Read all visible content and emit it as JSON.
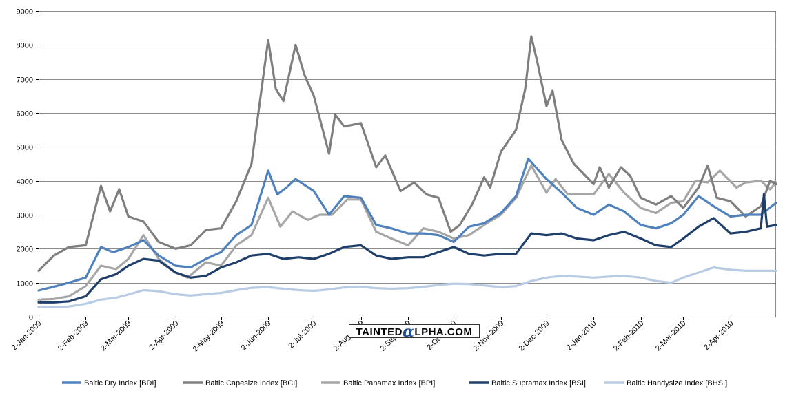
{
  "chart_data": {
    "type": "line",
    "title": "",
    "xlabel": "",
    "ylabel": "",
    "ylim": [
      0,
      9000
    ],
    "yticks": [
      0,
      1000,
      2000,
      3000,
      4000,
      5000,
      6000,
      7000,
      8000,
      9000
    ],
    "xlim": [
      "2-Jan-2009",
      "2-May-2010"
    ],
    "xtick_labels": [
      "2-Jan-2009",
      "2-Feb-2009",
      "2-Mar-2009",
      "2-Apr-2009",
      "2-May-2009",
      "2-Jun-2009",
      "2-Jul-2009",
      "2-Aug-2009",
      "2-Sep-2009",
      "2-Oct-2009",
      "2-Nov-2009",
      "2-Dec-2009",
      "2-Jan-2010",
      "2-Feb-2010",
      "2-Mar-2010",
      "2-Apr-2010"
    ],
    "grid": "horizontal",
    "legend_position": "bottom",
    "series": [
      {
        "name": "Baltic Dry Index [BDI]",
        "color": "#4f81bd",
        "points": [
          [
            "2-Jan-2009",
            770
          ],
          [
            "12-Jan-2009",
            880
          ],
          [
            "22-Jan-2009",
            1000
          ],
          [
            "2-Feb-2009",
            1150
          ],
          [
            "12-Feb-2009",
            2050
          ],
          [
            "20-Feb-2009",
            1900
          ],
          [
            "2-Mar-2009",
            2050
          ],
          [
            "12-Mar-2009",
            2250
          ],
          [
            "22-Mar-2009",
            1800
          ],
          [
            "2-Apr-2009",
            1500
          ],
          [
            "12-Apr-2009",
            1450
          ],
          [
            "22-Apr-2009",
            1700
          ],
          [
            "2-May-2009",
            1900
          ],
          [
            "12-May-2009",
            2400
          ],
          [
            "22-May-2009",
            2700
          ],
          [
            "2-Jun-2009",
            4300
          ],
          [
            "8-Jun-2009",
            3600
          ],
          [
            "14-Jun-2009",
            3800
          ],
          [
            "20-Jun-2009",
            4050
          ],
          [
            "2-Jul-2009",
            3700
          ],
          [
            "12-Jul-2009",
            3000
          ],
          [
            "22-Jul-2009",
            3550
          ],
          [
            "2-Aug-2009",
            3500
          ],
          [
            "12-Aug-2009",
            2700
          ],
          [
            "22-Aug-2009",
            2600
          ],
          [
            "2-Sep-2009",
            2450
          ],
          [
            "12-Sep-2009",
            2450
          ],
          [
            "22-Sep-2009",
            2400
          ],
          [
            "2-Oct-2009",
            2200
          ],
          [
            "12-Oct-2009",
            2650
          ],
          [
            "22-Oct-2009",
            2750
          ],
          [
            "2-Nov-2009",
            3050
          ],
          [
            "12-Nov-2009",
            3550
          ],
          [
            "20-Nov-2009",
            4650
          ],
          [
            "2-Dec-2009",
            4050
          ],
          [
            "12-Dec-2009",
            3650
          ],
          [
            "22-Dec-2009",
            3200
          ],
          [
            "2-Jan-2010",
            3000
          ],
          [
            "12-Jan-2010",
            3300
          ],
          [
            "22-Jan-2010",
            3100
          ],
          [
            "2-Feb-2010",
            2700
          ],
          [
            "12-Feb-2010",
            2600
          ],
          [
            "22-Feb-2010",
            2750
          ],
          [
            "2-Mar-2010",
            3000
          ],
          [
            "12-Mar-2010",
            3550
          ],
          [
            "22-Mar-2010",
            3250
          ],
          [
            "2-Apr-2010",
            2950
          ],
          [
            "12-Apr-2010",
            3000
          ],
          [
            "22-Apr-2010",
            3000
          ],
          [
            "2-May-2010",
            3350
          ]
        ]
      },
      {
        "name": "Baltic Capesize Index [BCI]",
        "color": "#7f7f7f",
        "points": [
          [
            "2-Jan-2009",
            1350
          ],
          [
            "12-Jan-2009",
            1800
          ],
          [
            "22-Jan-2009",
            2050
          ],
          [
            "2-Feb-2009",
            2100
          ],
          [
            "12-Feb-2009",
            3850
          ],
          [
            "18-Feb-2009",
            3100
          ],
          [
            "24-Feb-2009",
            3750
          ],
          [
            "2-Mar-2009",
            2950
          ],
          [
            "12-Mar-2009",
            2800
          ],
          [
            "22-Mar-2009",
            2200
          ],
          [
            "2-Apr-2009",
            2000
          ],
          [
            "12-Apr-2009",
            2100
          ],
          [
            "22-Apr-2009",
            2550
          ],
          [
            "2-May-2009",
            2600
          ],
          [
            "12-May-2009",
            3400
          ],
          [
            "22-May-2009",
            4500
          ],
          [
            "2-Jun-2009",
            8150
          ],
          [
            "7-Jun-2009",
            6700
          ],
          [
            "12-Jun-2009",
            6350
          ],
          [
            "20-Jun-2009",
            8000
          ],
          [
            "26-Jun-2009",
            7100
          ],
          [
            "2-Jul-2009",
            6500
          ],
          [
            "12-Jul-2009",
            4800
          ],
          [
            "16-Jul-2009",
            5950
          ],
          [
            "22-Jul-2009",
            5600
          ],
          [
            "2-Aug-2009",
            5700
          ],
          [
            "12-Aug-2009",
            4400
          ],
          [
            "18-Aug-2009",
            4750
          ],
          [
            "28-Aug-2009",
            3700
          ],
          [
            "6-Sep-2009",
            3950
          ],
          [
            "14-Sep-2009",
            3600
          ],
          [
            "22-Sep-2009",
            3500
          ],
          [
            "30-Sep-2009",
            2500
          ],
          [
            "6-Oct-2009",
            2700
          ],
          [
            "14-Oct-2009",
            3300
          ],
          [
            "22-Oct-2009",
            4100
          ],
          [
            "26-Oct-2009",
            3800
          ],
          [
            "2-Nov-2009",
            4850
          ],
          [
            "12-Nov-2009",
            5500
          ],
          [
            "18-Nov-2009",
            6700
          ],
          [
            "22-Nov-2009",
            8250
          ],
          [
            "26-Nov-2009",
            7500
          ],
          [
            "2-Dec-2009",
            6200
          ],
          [
            "6-Dec-2009",
            6650
          ],
          [
            "12-Dec-2009",
            5200
          ],
          [
            "20-Dec-2009",
            4500
          ],
          [
            "2-Jan-2010",
            3900
          ],
          [
            "6-Jan-2010",
            4400
          ],
          [
            "12-Jan-2010",
            3800
          ],
          [
            "20-Jan-2010",
            4400
          ],
          [
            "26-Jan-2010",
            4150
          ],
          [
            "2-Feb-2010",
            3500
          ],
          [
            "12-Feb-2010",
            3300
          ],
          [
            "22-Feb-2010",
            3550
          ],
          [
            "2-Mar-2010",
            3200
          ],
          [
            "12-Mar-2010",
            3800
          ],
          [
            "18-Mar-2010",
            4450
          ],
          [
            "24-Mar-2010",
            3500
          ],
          [
            "2-Apr-2010",
            3400
          ],
          [
            "12-Apr-2010",
            2950
          ],
          [
            "22-Apr-2010",
            3250
          ],
          [
            "28-Apr-2010",
            4000
          ],
          [
            "2-May-2010",
            3900
          ]
        ]
      },
      {
        "name": "Baltic Panamax Index [BPI]",
        "color": "#a6a6a6",
        "points": [
          [
            "2-Jan-2009",
            500
          ],
          [
            "12-Jan-2009",
            520
          ],
          [
            "22-Jan-2009",
            600
          ],
          [
            "2-Feb-2009",
            900
          ],
          [
            "12-Feb-2009",
            1500
          ],
          [
            "22-Feb-2009",
            1400
          ],
          [
            "2-Mar-2009",
            1700
          ],
          [
            "12-Mar-2009",
            2400
          ],
          [
            "22-Mar-2009",
            1700
          ],
          [
            "2-Apr-2009",
            1300
          ],
          [
            "10-Apr-2009",
            1150
          ],
          [
            "22-Apr-2009",
            1600
          ],
          [
            "2-May-2009",
            1500
          ],
          [
            "12-May-2009",
            2100
          ],
          [
            "22-May-2009",
            2400
          ],
          [
            "2-Jun-2009",
            3500
          ],
          [
            "10-Jun-2009",
            2650
          ],
          [
            "18-Jun-2009",
            3100
          ],
          [
            "28-Jun-2009",
            2850
          ],
          [
            "6-Jul-2009",
            3000
          ],
          [
            "14-Jul-2009",
            3000
          ],
          [
            "24-Jul-2009",
            3450
          ],
          [
            "2-Aug-2009",
            3450
          ],
          [
            "12-Aug-2009",
            2500
          ],
          [
            "22-Aug-2009",
            2300
          ],
          [
            "2-Sep-2009",
            2100
          ],
          [
            "12-Sep-2009",
            2600
          ],
          [
            "22-Sep-2009",
            2500
          ],
          [
            "2-Oct-2009",
            2300
          ],
          [
            "12-Oct-2009",
            2400
          ],
          [
            "22-Oct-2009",
            2700
          ],
          [
            "2-Nov-2009",
            3000
          ],
          [
            "12-Nov-2009",
            3500
          ],
          [
            "22-Nov-2009",
            4450
          ],
          [
            "2-Dec-2009",
            3650
          ],
          [
            "8-Dec-2009",
            4050
          ],
          [
            "16-Dec-2009",
            3600
          ],
          [
            "2-Jan-2010",
            3600
          ],
          [
            "12-Jan-2010",
            4200
          ],
          [
            "22-Jan-2010",
            3650
          ],
          [
            "2-Feb-2010",
            3200
          ],
          [
            "12-Feb-2010",
            3050
          ],
          [
            "22-Feb-2010",
            3350
          ],
          [
            "2-Mar-2010",
            3400
          ],
          [
            "10-Mar-2010",
            4000
          ],
          [
            "18-Mar-2010",
            3950
          ],
          [
            "26-Mar-2010",
            4300
          ],
          [
            "6-Apr-2010",
            3800
          ],
          [
            "12-Apr-2010",
            3950
          ],
          [
            "22-Apr-2010",
            4000
          ],
          [
            "28-Apr-2010",
            3750
          ],
          [
            "2-May-2010",
            3950
          ]
        ]
      },
      {
        "name": "Baltic Supramax Index [BSI]",
        "color": "#1f3f6b",
        "points": [
          [
            "2-Jan-2009",
            420
          ],
          [
            "12-Jan-2009",
            420
          ],
          [
            "22-Jan-2009",
            450
          ],
          [
            "2-Feb-2009",
            600
          ],
          [
            "12-Feb-2009",
            1100
          ],
          [
            "22-Feb-2009",
            1250
          ],
          [
            "2-Mar-2009",
            1500
          ],
          [
            "12-Mar-2009",
            1700
          ],
          [
            "22-Mar-2009",
            1650
          ],
          [
            "2-Apr-2009",
            1300
          ],
          [
            "12-Apr-2009",
            1150
          ],
          [
            "22-Apr-2009",
            1200
          ],
          [
            "2-May-2009",
            1450
          ],
          [
            "12-May-2009",
            1600
          ],
          [
            "22-May-2009",
            1800
          ],
          [
            "2-Jun-2009",
            1850
          ],
          [
            "12-Jun-2009",
            1700
          ],
          [
            "22-Jun-2009",
            1750
          ],
          [
            "2-Jul-2009",
            1700
          ],
          [
            "12-Jul-2009",
            1850
          ],
          [
            "22-Jul-2009",
            2050
          ],
          [
            "2-Aug-2009",
            2100
          ],
          [
            "12-Aug-2009",
            1800
          ],
          [
            "22-Aug-2009",
            1700
          ],
          [
            "2-Sep-2009",
            1750
          ],
          [
            "12-Sep-2009",
            1750
          ],
          [
            "22-Sep-2009",
            1900
          ],
          [
            "2-Oct-2009",
            2050
          ],
          [
            "12-Oct-2009",
            1850
          ],
          [
            "22-Oct-2009",
            1800
          ],
          [
            "2-Nov-2009",
            1850
          ],
          [
            "12-Nov-2009",
            1850
          ],
          [
            "22-Nov-2009",
            2450
          ],
          [
            "2-Dec-2009",
            2400
          ],
          [
            "12-Dec-2009",
            2450
          ],
          [
            "22-Dec-2009",
            2300
          ],
          [
            "2-Jan-2010",
            2250
          ],
          [
            "12-Jan-2010",
            2400
          ],
          [
            "22-Jan-2010",
            2500
          ],
          [
            "2-Feb-2010",
            2300
          ],
          [
            "12-Feb-2010",
            2100
          ],
          [
            "22-Feb-2010",
            2050
          ],
          [
            "2-Mar-2010",
            2300
          ],
          [
            "12-Mar-2010",
            2650
          ],
          [
            "22-Mar-2010",
            2900
          ],
          [
            "2-Apr-2010",
            2450
          ],
          [
            "12-Apr-2010",
            2500
          ],
          [
            "22-Apr-2010",
            2600
          ],
          [
            "24-Apr-2010",
            3600
          ],
          [
            "26-Apr-2010",
            2650
          ],
          [
            "2-May-2010",
            2700
          ]
        ]
      },
      {
        "name": "Baltic Handysize Index [BHSI]",
        "color": "#b8cce4",
        "points": [
          [
            "2-Jan-2009",
            280
          ],
          [
            "12-Jan-2009",
            280
          ],
          [
            "22-Jan-2009",
            300
          ],
          [
            "2-Feb-2009",
            380
          ],
          [
            "12-Feb-2009",
            500
          ],
          [
            "22-Feb-2009",
            560
          ],
          [
            "2-Mar-2009",
            650
          ],
          [
            "12-Mar-2009",
            780
          ],
          [
            "22-Mar-2009",
            750
          ],
          [
            "2-Apr-2009",
            660
          ],
          [
            "12-Apr-2009",
            620
          ],
          [
            "22-Apr-2009",
            660
          ],
          [
            "2-May-2009",
            700
          ],
          [
            "12-May-2009",
            780
          ],
          [
            "22-May-2009",
            850
          ],
          [
            "2-Jun-2009",
            870
          ],
          [
            "12-Jun-2009",
            820
          ],
          [
            "22-Jun-2009",
            780
          ],
          [
            "2-Jul-2009",
            760
          ],
          [
            "12-Jul-2009",
            800
          ],
          [
            "22-Jul-2009",
            860
          ],
          [
            "2-Aug-2009",
            880
          ],
          [
            "12-Aug-2009",
            840
          ],
          [
            "22-Aug-2009",
            820
          ],
          [
            "2-Sep-2009",
            840
          ],
          [
            "12-Sep-2009",
            880
          ],
          [
            "22-Sep-2009",
            930
          ],
          [
            "2-Oct-2009",
            970
          ],
          [
            "12-Oct-2009",
            960
          ],
          [
            "22-Oct-2009",
            920
          ],
          [
            "2-Nov-2009",
            870
          ],
          [
            "12-Nov-2009",
            900
          ],
          [
            "22-Nov-2009",
            1050
          ],
          [
            "2-Dec-2009",
            1150
          ],
          [
            "12-Dec-2009",
            1200
          ],
          [
            "22-Dec-2009",
            1180
          ],
          [
            "2-Jan-2010",
            1150
          ],
          [
            "12-Jan-2010",
            1180
          ],
          [
            "22-Jan-2010",
            1200
          ],
          [
            "2-Feb-2010",
            1150
          ],
          [
            "12-Feb-2010",
            1050
          ],
          [
            "22-Feb-2010",
            1000
          ],
          [
            "2-Mar-2010",
            1150
          ],
          [
            "12-Mar-2010",
            1300
          ],
          [
            "22-Mar-2010",
            1450
          ],
          [
            "2-Apr-2010",
            1380
          ],
          [
            "12-Apr-2010",
            1350
          ],
          [
            "22-Apr-2010",
            1350
          ],
          [
            "2-May-2010",
            1350
          ]
        ]
      }
    ]
  },
  "watermark": {
    "text_before": "TAINTED",
    "alpha_glyph": "α",
    "text_after": "LPHA.COM"
  }
}
